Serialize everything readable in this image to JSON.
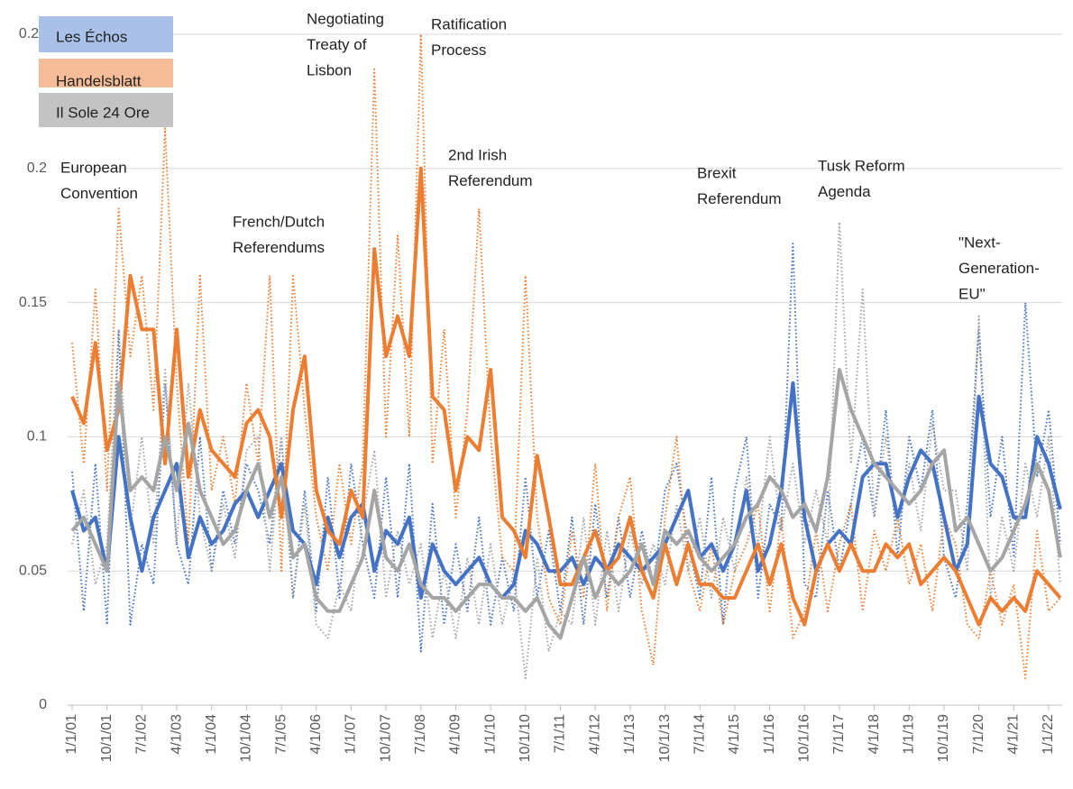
{
  "chart_data": {
    "type": "line",
    "categories": [
      "1/1/01",
      null,
      null,
      "10/1/01",
      null,
      null,
      "7/1/02",
      null,
      null,
      "4/1/03",
      null,
      null,
      "1/1/04",
      null,
      null,
      "10/1/04",
      null,
      null,
      "7/1/05",
      null,
      null,
      "4/1/06",
      null,
      null,
      "1/1/07",
      null,
      null,
      "10/1/07",
      null,
      null,
      "7/1/08",
      null,
      null,
      "4/1/09",
      null,
      null,
      "1/1/10",
      null,
      null,
      "10/1/10",
      null,
      null,
      "7/1/11",
      null,
      null,
      "4/1/12",
      null,
      null,
      "1/1/13",
      null,
      null,
      "10/1/13",
      null,
      null,
      "7/1/14",
      null,
      null,
      "4/1/15",
      null,
      null,
      "1/1/16",
      null,
      null,
      "10/1/16",
      null,
      null,
      "7/1/17",
      null,
      null,
      "4/1/18",
      null,
      null,
      "1/1/19",
      null,
      null,
      "10/1/19",
      null,
      null,
      "7/1/20",
      null,
      null,
      "4/1/21",
      null,
      null,
      "1/1/22",
      null
    ],
    "series": [
      {
        "name": "Les Échos",
        "color": "#4472c4",
        "values": [
          0.08,
          0.065,
          0.07,
          0.05,
          0.1,
          0.07,
          0.05,
          0.07,
          0.08,
          0.09,
          0.055,
          0.07,
          0.06,
          0.065,
          0.075,
          0.08,
          0.07,
          0.08,
          0.09,
          0.065,
          0.06,
          0.045,
          0.07,
          0.055,
          0.07,
          0.075,
          0.05,
          0.065,
          0.06,
          0.07,
          0.04,
          0.06,
          0.05,
          0.045,
          0.05,
          0.055,
          0.045,
          0.04,
          0.045,
          0.065,
          0.06,
          0.05,
          0.05,
          0.055,
          0.045,
          0.055,
          0.05,
          0.06,
          0.055,
          0.05,
          0.055,
          0.06,
          0.07,
          0.08,
          0.055,
          0.06,
          0.05,
          0.06,
          0.08,
          0.05,
          0.06,
          0.08,
          0.12,
          0.07,
          0.05,
          0.06,
          0.065,
          0.06,
          0.085,
          0.09,
          0.09,
          0.07,
          0.085,
          0.095,
          0.09,
          0.07,
          0.05,
          0.06,
          0.115,
          0.09,
          0.085,
          0.07,
          0.07,
          0.1,
          0.09,
          0.073
        ],
        "raw_values": [
          0.087,
          0.035,
          0.09,
          0.03,
          0.14,
          0.03,
          0.06,
          0.045,
          0.12,
          0.06,
          0.045,
          0.1,
          0.05,
          0.08,
          0.06,
          0.09,
          0.08,
          0.06,
          0.1,
          0.04,
          0.08,
          0.035,
          0.085,
          0.04,
          0.09,
          0.06,
          0.04,
          0.085,
          0.04,
          0.09,
          0.02,
          0.075,
          0.03,
          0.06,
          0.035,
          0.07,
          0.03,
          0.055,
          0.035,
          0.085,
          0.04,
          0.065,
          0.035,
          0.07,
          0.03,
          0.075,
          0.04,
          0.07,
          0.04,
          0.065,
          0.045,
          0.08,
          0.09,
          0.06,
          0.04,
          0.085,
          0.03,
          0.08,
          0.1,
          0.04,
          0.075,
          0.065,
          0.172,
          0.045,
          0.04,
          0.08,
          0.05,
          0.075,
          0.1,
          0.07,
          0.11,
          0.055,
          0.1,
          0.08,
          0.11,
          0.055,
          0.04,
          0.075,
          0.14,
          0.07,
          0.1,
          0.055,
          0.15,
          0.085,
          0.11,
          0.06
        ]
      },
      {
        "name": "Handelsblatt",
        "color": "#ed7d31",
        "values": [
          0.115,
          0.105,
          0.135,
          0.095,
          0.11,
          0.16,
          0.14,
          0.14,
          0.09,
          0.14,
          0.085,
          0.11,
          0.095,
          0.09,
          0.085,
          0.105,
          0.11,
          0.1,
          0.07,
          0.11,
          0.13,
          0.08,
          0.065,
          0.06,
          0.08,
          0.07,
          0.17,
          0.13,
          0.145,
          0.13,
          0.2,
          0.115,
          0.11,
          0.08,
          0.1,
          0.095,
          0.125,
          0.07,
          0.065,
          0.055,
          0.093,
          0.07,
          0.045,
          0.045,
          0.055,
          0.065,
          0.05,
          0.055,
          0.07,
          0.05,
          0.04,
          0.06,
          0.045,
          0.06,
          0.045,
          0.045,
          0.04,
          0.04,
          0.05,
          0.06,
          0.045,
          0.06,
          0.04,
          0.03,
          0.05,
          0.06,
          0.05,
          0.06,
          0.05,
          0.05,
          0.06,
          0.055,
          0.06,
          0.045,
          0.05,
          0.055,
          0.05,
          0.04,
          0.03,
          0.04,
          0.035,
          0.04,
          0.035,
          0.05,
          0.045,
          0.04
        ],
        "raw_values": [
          0.135,
          0.09,
          0.155,
          0.08,
          0.185,
          0.13,
          0.16,
          0.11,
          0.215,
          0.12,
          0.06,
          0.16,
          0.08,
          0.1,
          0.075,
          0.12,
          0.09,
          0.16,
          0.05,
          0.16,
          0.11,
          0.07,
          0.05,
          0.09,
          0.06,
          0.09,
          0.237,
          0.1,
          0.175,
          0.1,
          0.25,
          0.09,
          0.14,
          0.07,
          0.11,
          0.185,
          0.1,
          0.055,
          0.05,
          0.16,
          0.07,
          0.04,
          0.03,
          0.065,
          0.04,
          0.09,
          0.035,
          0.07,
          0.085,
          0.035,
          0.015,
          0.07,
          0.1,
          0.05,
          0.035,
          0.06,
          0.03,
          0.05,
          0.06,
          0.075,
          0.035,
          0.07,
          0.025,
          0.035,
          0.065,
          0.035,
          0.06,
          0.075,
          0.035,
          0.065,
          0.05,
          0.07,
          0.045,
          0.06,
          0.035,
          0.07,
          0.06,
          0.03,
          0.025,
          0.05,
          0.03,
          0.045,
          0.01,
          0.065,
          0.035,
          0.04
        ]
      },
      {
        "name": "Il Sole 24 Ore",
        "color": "#a5a5a5",
        "values": [
          0.065,
          0.07,
          0.06,
          0.05,
          0.12,
          0.08,
          0.085,
          0.08,
          0.1,
          0.08,
          0.105,
          0.08,
          0.07,
          0.06,
          0.065,
          0.08,
          0.09,
          0.07,
          0.085,
          0.055,
          0.06,
          0.04,
          0.035,
          0.035,
          0.045,
          0.055,
          0.08,
          0.055,
          0.05,
          0.06,
          0.045,
          0.04,
          0.04,
          0.035,
          0.04,
          0.045,
          0.045,
          0.04,
          0.04,
          0.035,
          0.04,
          0.03,
          0.025,
          0.04,
          0.055,
          0.04,
          0.05,
          0.045,
          0.05,
          0.06,
          0.045,
          0.065,
          0.06,
          0.065,
          0.055,
          0.05,
          0.055,
          0.06,
          0.07,
          0.075,
          0.085,
          0.08,
          0.07,
          0.075,
          0.065,
          0.085,
          0.125,
          0.11,
          0.1,
          0.09,
          0.085,
          0.08,
          0.075,
          0.08,
          0.09,
          0.095,
          0.065,
          0.07,
          0.06,
          0.05,
          0.055,
          0.065,
          0.075,
          0.09,
          0.08,
          0.055
        ],
        "raw_values": [
          0.06,
          0.08,
          0.045,
          0.06,
          0.14,
          0.065,
          0.1,
          0.06,
          0.125,
          0.06,
          0.12,
          0.07,
          0.05,
          0.075,
          0.055,
          0.095,
          0.1,
          0.05,
          0.1,
          0.04,
          0.075,
          0.03,
          0.025,
          0.045,
          0.035,
          0.07,
          0.095,
          0.04,
          0.065,
          0.045,
          0.06,
          0.025,
          0.05,
          0.025,
          0.055,
          0.03,
          0.06,
          0.03,
          0.05,
          0.01,
          0.055,
          0.02,
          0.035,
          0.03,
          0.07,
          0.03,
          0.065,
          0.035,
          0.065,
          0.045,
          0.06,
          0.045,
          0.075,
          0.05,
          0.07,
          0.04,
          0.07,
          0.05,
          0.085,
          0.06,
          0.1,
          0.065,
          0.09,
          0.06,
          0.08,
          0.06,
          0.18,
          0.09,
          0.155,
          0.07,
          0.1,
          0.065,
          0.09,
          0.065,
          0.105,
          0.08,
          0.08,
          0.05,
          0.145,
          0.04,
          0.07,
          0.05,
          0.09,
          0.07,
          0.1,
          0.045
        ]
      }
    ],
    "ylim": [
      0,
      0.25
    ],
    "yticks": [
      0,
      0.05,
      0.1,
      0.15,
      0.2,
      0.25
    ],
    "grid": true,
    "legend": "top-left",
    "annotations": [
      [
        "European",
        "Convention"
      ],
      [
        "Negotiating",
        "Treaty of",
        "Lisbon"
      ],
      [
        "Ratification",
        "Process"
      ],
      [
        "2nd Irish",
        "Referendum"
      ],
      [
        "French/Dutch",
        "Referendums"
      ],
      [
        "Brexit",
        "Referendum"
      ],
      [
        "Tusk Reform",
        "Agenda"
      ],
      [
        "\"Next-",
        "Generation-",
        "EU\""
      ]
    ]
  }
}
